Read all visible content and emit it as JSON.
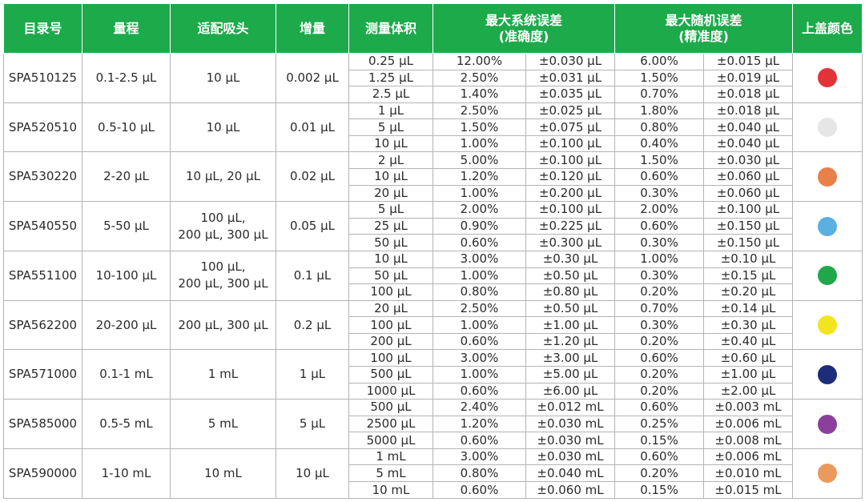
{
  "headers": {
    "catalog": "目录号",
    "range": "量程",
    "tip": "适配吸头",
    "increment": "增量",
    "volume": "测量体积",
    "sys_error_line1": "最大系统误差",
    "sys_error_line2": "(准确度)",
    "rand_error_line1": "最大随机误差",
    "rand_error_line2": "(精准度)",
    "cap_color": "上盖颜色"
  },
  "products": [
    {
      "catalog": "SPA510125",
      "range": "0.1-2.5 μL",
      "tip": "10 μL",
      "increment": "0.002 μL",
      "cap_color": "#e23339",
      "cap_color_name": "red",
      "rows": [
        {
          "volume": "0.25 μL",
          "sys_pct": "12.00%",
          "sys_abs": "±0.030 μL",
          "rand_pct": "6.00%",
          "rand_abs": "±0.015 μL"
        },
        {
          "volume": "1.25 μL",
          "sys_pct": "2.50%",
          "sys_abs": "±0.031 μL",
          "rand_pct": "1.50%",
          "rand_abs": "±0.019 μL"
        },
        {
          "volume": "2.5 μL",
          "sys_pct": "1.40%",
          "sys_abs": "±0.035 μL",
          "rand_pct": "0.70%",
          "rand_abs": "±0.018 μL"
        }
      ]
    },
    {
      "catalog": "SPA520510",
      "range": "0.5-10 μL",
      "tip": "10 μL",
      "increment": "0.01 μL",
      "cap_color": "#e6e6e6",
      "cap_color_name": "white",
      "rows": [
        {
          "volume": "1 μL",
          "sys_pct": "2.50%",
          "sys_abs": "±0.025 μL",
          "rand_pct": "1.80%",
          "rand_abs": "±0.018 μL"
        },
        {
          "volume": "5 μL",
          "sys_pct": "1.50%",
          "sys_abs": "±0.075 μL",
          "rand_pct": "0.80%",
          "rand_abs": "±0.040 μL"
        },
        {
          "volume": "10 μL",
          "sys_pct": "1.00%",
          "sys_abs": "±0.100 μL",
          "rand_pct": "0.40%",
          "rand_abs": "±0.040 μL"
        }
      ]
    },
    {
      "catalog": "SPA530220",
      "range": "2-20 μL",
      "tip": "10 μL, 20 μL",
      "increment": "0.02 μL",
      "cap_color": "#e8804a",
      "cap_color_name": "orange",
      "rows": [
        {
          "volume": "2 μL",
          "sys_pct": "5.00%",
          "sys_abs": "±0.100 μL",
          "rand_pct": "1.50%",
          "rand_abs": "±0.030 μL"
        },
        {
          "volume": "10 μL",
          "sys_pct": "1.20%",
          "sys_abs": "±0.120 μL",
          "rand_pct": "0.60%",
          "rand_abs": "±0.060 μL"
        },
        {
          "volume": "20 μL",
          "sys_pct": "1.00%",
          "sys_abs": "±0.200 μL",
          "rand_pct": "0.30%",
          "rand_abs": "±0.060 μL"
        }
      ]
    },
    {
      "catalog": "SPA540550",
      "range": "5-50 μL",
      "tip_line1": "100 μL,",
      "tip_line2": "200 μL, 300 μL",
      "increment": "0.05 μL",
      "cap_color": "#5ab0e0",
      "cap_color_name": "light-blue",
      "rows": [
        {
          "volume": "5 μL",
          "sys_pct": "2.00%",
          "sys_abs": "±0.100 μL",
          "rand_pct": "2.00%",
          "rand_abs": "±0.100 μL"
        },
        {
          "volume": "25 μL",
          "sys_pct": "0.90%",
          "sys_abs": "±0.225 μL",
          "rand_pct": "0.60%",
          "rand_abs": "±0.150 μL"
        },
        {
          "volume": "50 μL",
          "sys_pct": "0.60%",
          "sys_abs": "±0.300 μL",
          "rand_pct": "0.30%",
          "rand_abs": "±0.150 μL"
        }
      ]
    },
    {
      "catalog": "SPA551100",
      "range": "10-100 μL",
      "tip_line1": "100 μL,",
      "tip_line2": "200 μL, 300 μL",
      "increment": "0.1 μL",
      "cap_color": "#1fa84a",
      "cap_color_name": "green",
      "rows": [
        {
          "volume": "10 μL",
          "sys_pct": "3.00%",
          "sys_abs": "±0.30 μL",
          "rand_pct": "1.00%",
          "rand_abs": "±0.10 μL"
        },
        {
          "volume": "50 μL",
          "sys_pct": "1.00%",
          "sys_abs": "±0.50 μL",
          "rand_pct": "0.30%",
          "rand_abs": "±0.15 μL"
        },
        {
          "volume": "100 μL",
          "sys_pct": "0.80%",
          "sys_abs": "±0.80 μL",
          "rand_pct": "0.20%",
          "rand_abs": "±0.20 μL"
        }
      ]
    },
    {
      "catalog": "SPA562200",
      "range": "20-200 μL",
      "tip": "200 μL, 300 μL",
      "increment": "0.2 μL",
      "cap_color": "#f2e51f",
      "cap_color_name": "yellow",
      "rows": [
        {
          "volume": "20 μL",
          "sys_pct": "2.50%",
          "sys_abs": "±0.50 μL",
          "rand_pct": "0.70%",
          "rand_abs": "±0.14 μL"
        },
        {
          "volume": "100 μL",
          "sys_pct": "1.00%",
          "sys_abs": "±1.00 μL",
          "rand_pct": "0.30%",
          "rand_abs": "±0.30 μL"
        },
        {
          "volume": "200 μL",
          "sys_pct": "0.60%",
          "sys_abs": "±1.20 μL",
          "rand_pct": "0.20%",
          "rand_abs": "±0.40 μL"
        }
      ]
    },
    {
      "catalog": "SPA571000",
      "range": "0.1-1 mL",
      "tip": "1 mL",
      "increment": "1 μL",
      "cap_color": "#1d2d7a",
      "cap_color_name": "navy",
      "rows": [
        {
          "volume": "100 μL",
          "sys_pct": "3.00%",
          "sys_abs": "±3.00 μL",
          "rand_pct": "0.60%",
          "rand_abs": "±0.60 μL"
        },
        {
          "volume": "500 μL",
          "sys_pct": "1.00%",
          "sys_abs": "±5.00 μL",
          "rand_pct": "0.20%",
          "rand_abs": "±1.00 μL"
        },
        {
          "volume": "1000 μL",
          "sys_pct": "0.60%",
          "sys_abs": "±6.00 μL",
          "rand_pct": "0.20%",
          "rand_abs": "±2.00 μL"
        }
      ]
    },
    {
      "catalog": "SPA585000",
      "range": "0.5-5 mL",
      "tip": "5 mL",
      "increment": "5 μL",
      "cap_color": "#8b3f9a",
      "cap_color_name": "purple",
      "rows": [
        {
          "volume": "500 μL",
          "sys_pct": "2.40%",
          "sys_abs": "±0.012 mL",
          "rand_pct": "0.60%",
          "rand_abs": "±0.003 mL"
        },
        {
          "volume": "2500 μL",
          "sys_pct": "1.20%",
          "sys_abs": "±0.030 mL",
          "rand_pct": "0.25%",
          "rand_abs": "±0.006 mL"
        },
        {
          "volume": "5000 μL",
          "sys_pct": "0.60%",
          "sys_abs": "±0.030 mL",
          "rand_pct": "0.15%",
          "rand_abs": "±0.008 mL"
        }
      ]
    },
    {
      "catalog": "SPA590000",
      "range": "1-10 mL",
      "tip": "10 mL",
      "increment": "10 μL",
      "cap_color": "#ea9a5c",
      "cap_color_name": "light-orange",
      "rows": [
        {
          "volume": "1 mL",
          "sys_pct": "3.00%",
          "sys_abs": "±0.030 mL",
          "rand_pct": "0.60%",
          "rand_abs": "±0.006 mL"
        },
        {
          "volume": "5 mL",
          "sys_pct": "0.80%",
          "sys_abs": "±0.040 mL",
          "rand_pct": "0.20%",
          "rand_abs": "±0.010 mL"
        },
        {
          "volume": "10 mL",
          "sys_pct": "0.60%",
          "sys_abs": "±0.060 mL",
          "rand_pct": "0.15%",
          "rand_abs": "±0.015 mL"
        }
      ]
    }
  ]
}
